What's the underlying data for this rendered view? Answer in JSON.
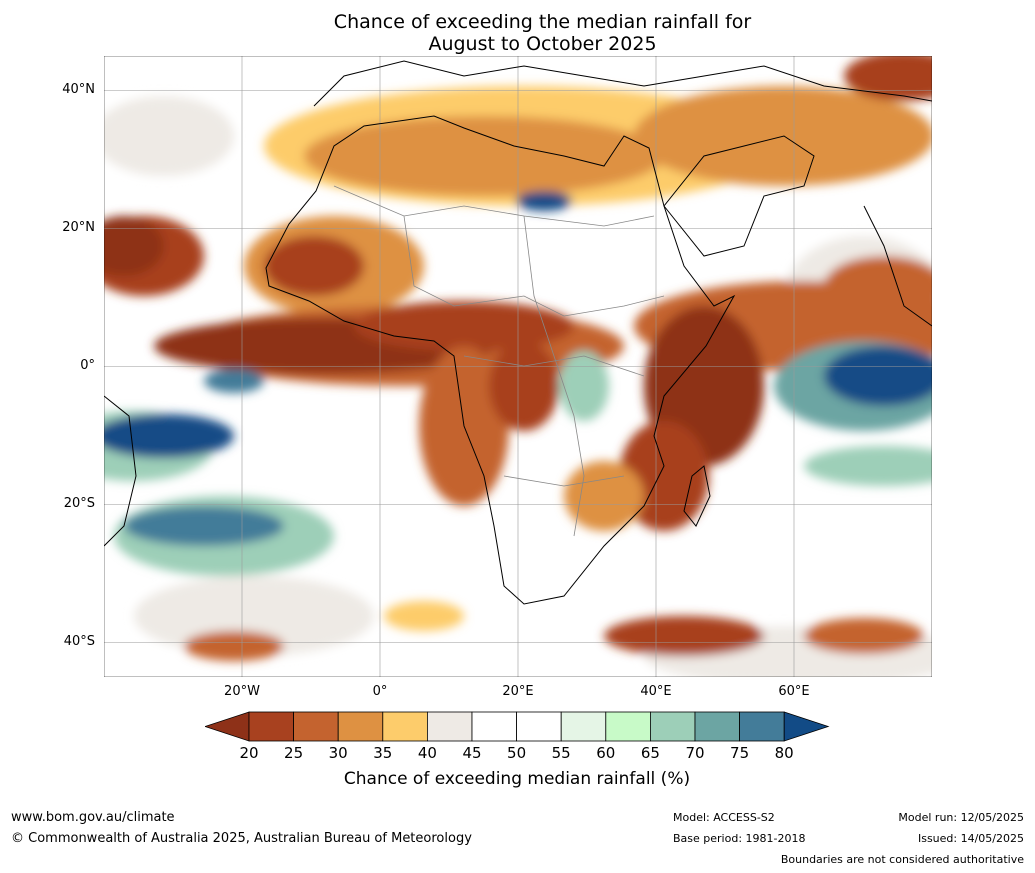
{
  "title": {
    "line1": "Chance of exceeding the median rainfall for",
    "line2": "August to October 2025"
  },
  "map": {
    "lat_labels": [
      "40°N",
      "20°N",
      "0°",
      "20°S",
      "40°S"
    ],
    "lat_values": [
      40,
      20,
      0,
      -20,
      -40
    ],
    "lon_labels": [
      "20°W",
      "0°",
      "20°E",
      "40°E",
      "60°E"
    ],
    "lon_values": [
      -20,
      0,
      20,
      40,
      60
    ],
    "extent": {
      "lon": [
        -40,
        80
      ],
      "lat": [
        -45,
        45
      ]
    },
    "gridlines": true
  },
  "colorbar": {
    "label": "Chance of exceeding median rainfall (%)",
    "ticks": [
      "20",
      "25",
      "30",
      "35",
      "40",
      "45",
      "50",
      "55",
      "60",
      "65",
      "70",
      "75",
      "80"
    ],
    "colors": [
      "#8e3118",
      "#a8411f",
      "#c4632f",
      "#de9142",
      "#fdcc6b",
      "#eeeae5",
      "#ffffff",
      "#ffffff",
      "#e5f5e6",
      "#c8fac8",
      "#9dcfb8",
      "#6ca5a3",
      "#437c99",
      "#124b86"
    ]
  },
  "footer": {
    "url": "www.bom.gov.au/climate",
    "copyright": "© Commonwealth of Australia 2025, Australian Bureau of Meteorology",
    "model": "Model: ACCESS-S2",
    "base_period": "Base period: 1981-2018",
    "model_run": "Model run: 12/05/2025",
    "issued": "Issued: 14/05/2025",
    "boundaries": "Boundaries are not considered authoritative"
  }
}
